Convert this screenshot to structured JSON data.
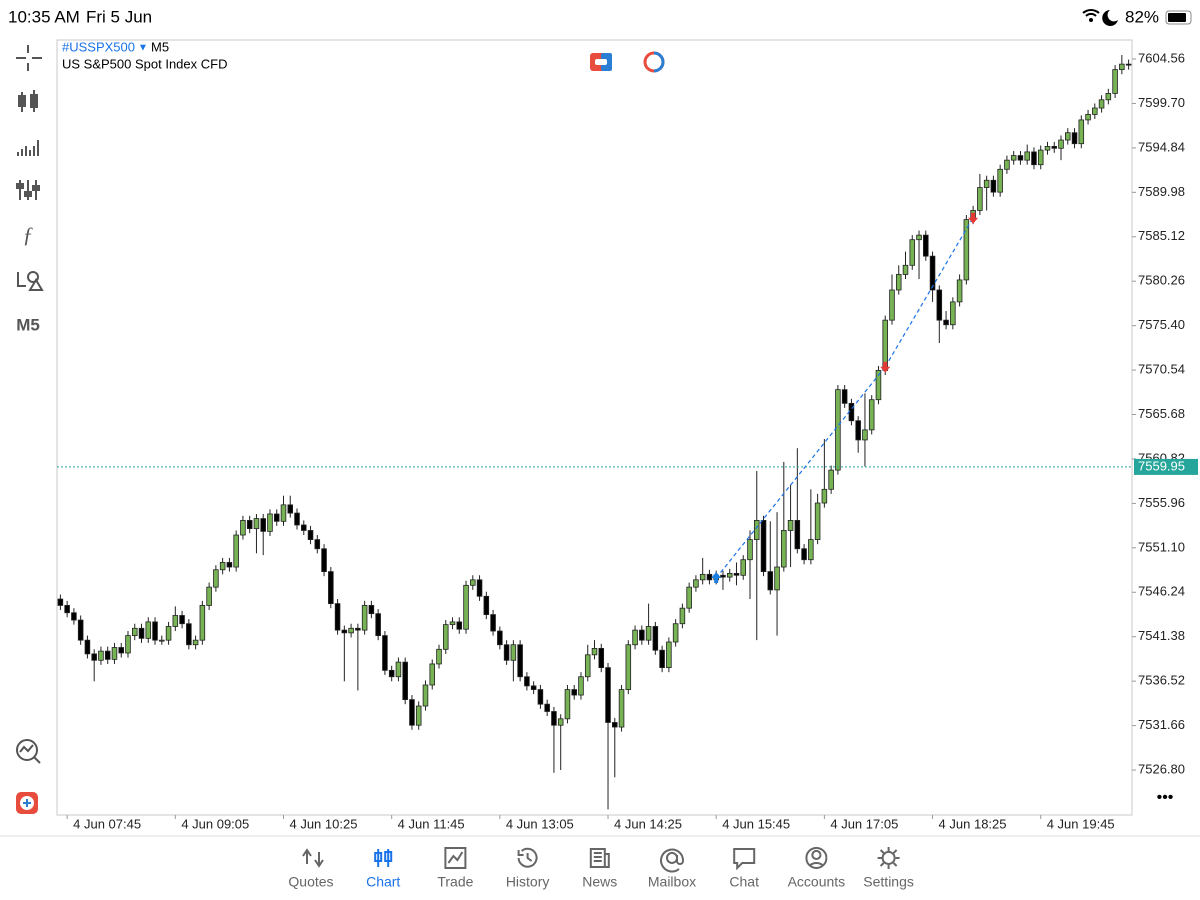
{
  "status_bar": {
    "time": "10:35 AM",
    "date": "Fri 5 Jun",
    "battery": "82%"
  },
  "toolbar": {
    "timeframe": "M5"
  },
  "more": "•••",
  "chart_data": {
    "type": "candlestick",
    "symbol": "#USSPX500",
    "timeframe": "M5",
    "description": "US S&P500 Spot Index CFD",
    "up_color": "#77b255",
    "down_color": "#000000",
    "categories": [
      null,
      "4 Jun 07:45",
      null,
      null,
      null,
      null,
      null,
      null,
      null,
      null,
      null,
      null,
      null,
      null,
      null,
      null,
      null,
      "4 Jun 09:05",
      null,
      null,
      null,
      null,
      null,
      null,
      null,
      null,
      null,
      null,
      null,
      null,
      null,
      null,
      null,
      "4 Jun 10:25",
      null,
      null,
      null,
      null,
      null,
      null,
      null,
      null,
      null,
      null,
      null,
      null,
      null,
      null,
      null,
      "4 Jun 11:45",
      null,
      null,
      null,
      null,
      null,
      null,
      null,
      null,
      null,
      null,
      null,
      null,
      null,
      null,
      null,
      "4 Jun 13:05",
      null,
      null,
      null,
      null,
      null,
      null,
      null,
      null,
      null,
      null,
      null,
      null,
      null,
      null,
      null,
      "4 Jun 14:25",
      null,
      null,
      null,
      null,
      null,
      null,
      null,
      null,
      null,
      null,
      null,
      null,
      null,
      null,
      null,
      "4 Jun 15:45",
      null,
      null,
      null,
      null,
      null,
      null,
      null,
      null,
      null,
      null,
      null,
      null,
      null,
      null,
      null,
      "4 Jun 17:05",
      null,
      null,
      null,
      null,
      null,
      null,
      null,
      null,
      null,
      null,
      null,
      null,
      null,
      null,
      null,
      "4 Jun 18:25",
      null,
      null,
      null,
      null,
      null,
      null,
      null,
      null,
      null,
      null,
      null,
      null,
      null,
      null,
      null,
      "4 Jun 19:45",
      null,
      null,
      null,
      null,
      null,
      null,
      null,
      null,
      null,
      null,
      null,
      null,
      null
    ],
    "open": [
      7545.5,
      7544.8,
      7544.0,
      7543.2,
      7541.0,
      7539.5,
      7538.8,
      7539.8,
      7538.9,
      7540.2,
      7539.6,
      7541.5,
      7542.3,
      7541.2,
      7543.0,
      7541.0,
      7541.0,
      7542.5,
      7543.7,
      7542.8,
      7540.5,
      7541.0,
      7544.8,
      7546.8,
      7548.7,
      7549.5,
      7549.0,
      7552.5,
      7554.1,
      7553.2,
      7554.3,
      7552.9,
      7554.8,
      7554.0,
      7555.8,
      7554.9,
      7553.6,
      7553.0,
      7552.0,
      7551.0,
      7548.5,
      7545.0,
      7542.1,
      7541.8,
      7542.3,
      7542.1,
      7544.8,
      7543.9,
      7541.5,
      7537.7,
      7537.0,
      7538.6,
      7534.5,
      7531.7,
      7533.8,
      7536.1,
      7538.4,
      7540.0,
      7542.7,
      7543.0,
      7542.2,
      7547.0,
      7547.6,
      7545.8,
      7543.8,
      7542.0,
      7540.5,
      7538.8,
      7540.5,
      7537.0,
      7536.0,
      7535.6,
      7534.0,
      7533.2,
      7531.7,
      7532.4,
      7535.6,
      7535.0,
      7537.0,
      7539.4,
      7540.1,
      7538.0,
      7532.0,
      7531.5,
      7535.6,
      7540.5,
      7542.1,
      7541.0,
      7542.5,
      7539.9,
      7538.0,
      7540.8,
      7542.8,
      7544.5,
      7546.8,
      7547.6,
      7548.2,
      7547.6,
      7548.1,
      7547.9,
      7548.3,
      7548.1,
      7549.8,
      7552.0,
      7554.1,
      7548.5,
      7546.5,
      7549.0,
      7553.0,
      7554.1,
      7551.0,
      7549.8,
      7552.0,
      7556.0,
      7557.5,
      7559.6,
      7568.4,
      7566.9,
      7565.0,
      7562.9,
      7564.0,
      7567.3,
      7570.5,
      7576.0,
      7579.3,
      7581.0,
      7582.0,
      7584.8,
      7585.3,
      7583.0,
      7579.3,
      7576.0,
      7575.5,
      7578.0,
      7580.4,
      7587.0,
      7588.0,
      7590.5,
      7591.3,
      7590.0,
      7592.5,
      7593.5,
      7594.0,
      7593.5,
      7594.4,
      7593.0,
      7594.6,
      7595.0,
      7594.8,
      7595.7,
      7596.5,
      7595.3,
      7597.9,
      7598.5,
      7599.2,
      7600.1,
      7600.8,
      7603.4,
      7604.0
    ],
    "high": [
      7546.0,
      7545.3,
      7544.5,
      7543.7,
      7541.5,
      7540.0,
      7540.3,
      7540.3,
      7540.7,
      7540.7,
      7542.0,
      7542.8,
      7542.8,
      7543.5,
      7543.5,
      7541.5,
      7543.0,
      7544.7,
      7544.2,
      7543.3,
      7541.5,
      7545.3,
      7547.3,
      7549.2,
      7550.0,
      7550.0,
      7553.0,
      7554.6,
      7554.6,
      7554.8,
      7554.8,
      7555.3,
      7555.3,
      7556.8,
      7556.8,
      7555.4,
      7554.1,
      7553.5,
      7552.5,
      7551.5,
      7549.0,
      7545.5,
      7542.6,
      7542.8,
      7542.8,
      7545.3,
      7545.3,
      7544.4,
      7542.0,
      7538.2,
      7539.1,
      7539.1,
      7535.0,
      7534.3,
      7536.6,
      7538.9,
      7540.5,
      7543.2,
      7543.5,
      7543.5,
      7547.5,
      7548.1,
      7548.1,
      7546.3,
      7544.3,
      7542.5,
      7541.0,
      7541.0,
      7541.0,
      7537.5,
      7536.5,
      7536.1,
      7534.5,
      7533.7,
      7532.9,
      7536.1,
      7536.1,
      7537.5,
      7540.5,
      7541.0,
      7540.6,
      7538.5,
      7532.5,
      7536.1,
      7541.0,
      7542.6,
      7542.6,
      7545.0,
      7543.0,
      7540.4,
      7541.3,
      7543.3,
      7545.0,
      7547.3,
      7548.1,
      7550.0,
      7548.7,
      7548.6,
      7548.6,
      7548.8,
      7549.5,
      7550.3,
      7553.0,
      7559.5,
      7554.6,
      7554.0,
      7555.0,
      7560.5,
      7558.0,
      7562.0,
      7551.5,
      7557.5,
      7557.0,
      7563.0,
      7560.1,
      7568.9,
      7568.9,
      7567.4,
      7565.5,
      7568.0,
      7567.8,
      7571.0,
      7576.5,
      7581.0,
      7582.0,
      7583.5,
      7585.3,
      7585.8,
      7585.8,
      7583.5,
      7579.8,
      7577.0,
      7578.5,
      7581.0,
      7587.5,
      7588.5,
      7592.0,
      7591.8,
      7591.8,
      7593.0,
      7594.0,
      7594.5,
      7594.5,
      7595.2,
      7594.9,
      7595.1,
      7595.5,
      7595.5,
      7596.2,
      7597.0,
      7597.0,
      7598.4,
      7599.0,
      7599.7,
      7600.6,
      7601.3,
      7603.9,
      7605.0,
      7604.5
    ],
    "low": [
      7544.3,
      7543.5,
      7542.7,
      7540.5,
      7539.0,
      7536.5,
      7538.3,
      7538.4,
      7538.4,
      7539.1,
      7539.1,
      7541.0,
      7540.7,
      7540.7,
      7540.5,
      7540.5,
      7540.5,
      7542.0,
      7542.3,
      7540.0,
      7540.0,
      7540.5,
      7544.3,
      7546.3,
      7548.2,
      7548.5,
      7548.5,
      7552.0,
      7552.7,
      7550.5,
      7550.3,
      7552.4,
      7553.5,
      7553.5,
      7554.4,
      7553.1,
      7552.5,
      7551.5,
      7550.5,
      7548.0,
      7544.5,
      7541.6,
      7536.5,
      7541.3,
      7535.5,
      7541.6,
      7543.4,
      7541.0,
      7537.2,
      7536.5,
      7536.5,
      7534.0,
      7531.2,
      7531.2,
      7533.3,
      7535.6,
      7537.9,
      7539.5,
      7542.2,
      7541.7,
      7541.7,
      7546.5,
      7545.3,
      7543.3,
      7541.5,
      7540.0,
      7538.3,
      7536.5,
      7536.5,
      7535.5,
      7535.1,
      7533.5,
      7532.7,
      7526.5,
      7526.8,
      7531.9,
      7534.5,
      7534.5,
      7536.5,
      7538.9,
      7537.5,
      7522.5,
      7526.0,
      7531.0,
      7535.1,
      7540.0,
      7540.5,
      7540.5,
      7539.4,
      7537.5,
      7537.5,
      7540.3,
      7542.3,
      7544.0,
      7546.3,
      7547.1,
      7547.1,
      7547.1,
      7546.5,
      7547.4,
      7547.0,
      7547.6,
      7545.5,
      7541.0,
      7548.0,
      7546.0,
      7541.5,
      7548.5,
      7549.0,
      7550.5,
      7549.3,
      7549.3,
      7551.5,
      7555.5,
      7557.0,
      7559.1,
      7566.4,
      7564.5,
      7561.5,
      7560.0,
      7563.5,
      7566.8,
      7570.0,
      7575.5,
      7578.8,
      7580.5,
      7581.5,
      7580.5,
      7582.5,
      7578.0,
      7573.5,
      7575.0,
      7575.0,
      7577.5,
      7579.9,
      7586.5,
      7587.5,
      7588.0,
      7589.5,
      7589.5,
      7592.0,
      7593.0,
      7593.0,
      7593.0,
      7592.5,
      7592.5,
      7594.1,
      7594.3,
      7593.5,
      7595.2,
      7594.8,
      7594.8,
      7597.4,
      7598.0,
      7598.7,
      7599.6,
      7600.3,
      7602.9,
      7603.4
    ],
    "close": [
      7544.8,
      7544.0,
      7543.2,
      7541.0,
      7539.5,
      7538.8,
      7539.8,
      7538.9,
      7540.2,
      7539.6,
      7541.5,
      7542.3,
      7541.2,
      7543.0,
      7541.0,
      7541.0,
      7542.5,
      7543.7,
      7542.8,
      7540.5,
      7541.0,
      7544.8,
      7546.8,
      7548.7,
      7549.5,
      7549.0,
      7552.5,
      7554.1,
      7553.2,
      7554.3,
      7552.9,
      7554.8,
      7554.0,
      7555.8,
      7554.9,
      7553.6,
      7553.0,
      7552.0,
      7551.0,
      7548.5,
      7545.0,
      7542.1,
      7541.8,
      7542.3,
      7542.1,
      7544.8,
      7543.9,
      7541.5,
      7537.7,
      7537.0,
      7538.6,
      7534.5,
      7531.7,
      7533.8,
      7536.1,
      7538.4,
      7540.0,
      7542.7,
      7543.0,
      7542.2,
      7547.0,
      7547.6,
      7545.8,
      7543.8,
      7542.0,
      7540.5,
      7538.8,
      7540.5,
      7537.0,
      7536.0,
      7535.6,
      7534.0,
      7533.2,
      7531.7,
      7532.4,
      7535.6,
      7535.0,
      7537.0,
      7539.4,
      7540.1,
      7538.0,
      7532.0,
      7531.5,
      7535.6,
      7540.5,
      7542.1,
      7541.0,
      7542.5,
      7539.9,
      7538.0,
      7540.8,
      7542.8,
      7544.5,
      7546.8,
      7547.6,
      7548.2,
      7547.6,
      7548.1,
      7547.9,
      7548.3,
      7548.1,
      7549.8,
      7552.0,
      7554.1,
      7548.5,
      7546.5,
      7549.0,
      7553.0,
      7554.1,
      7551.0,
      7549.8,
      7552.0,
      7556.0,
      7557.5,
      7559.6,
      7568.4,
      7566.9,
      7565.0,
      7562.9,
      7564.0,
      7567.3,
      7570.5,
      7576.0,
      7579.3,
      7581.0,
      7582.0,
      7584.8,
      7585.3,
      7583.0,
      7579.3,
      7576.0,
      7575.5,
      7578.0,
      7580.4,
      7587.0,
      7588.0,
      7590.5,
      7591.3,
      7590.0,
      7592.5,
      7593.5,
      7594.0,
      7593.5,
      7594.4,
      7593.0,
      7594.6,
      7595.0,
      7594.8,
      7595.7,
      7596.5,
      7595.3,
      7597.9,
      7598.5,
      7599.2,
      7600.1,
      7600.8,
      7603.4,
      7604.0,
      7603.9
    ],
    "ylim": [
      7521.88,
      7606.64
    ],
    "yticks": [
      7604.56,
      {
        "value": 7599.7,
        "label": "7599.70"
      },
      7594.84,
      7589.98,
      7585.12,
      7580.26,
      {
        "value": 7575.4,
        "label": "7575.40"
      },
      7570.54,
      7565.68,
      7560.82,
      7555.96,
      {
        "value": 7551.1,
        "label": "7551.10"
      },
      7546.24,
      7541.38,
      7536.52,
      7531.66,
      {
        "value": 7526.8,
        "label": "7526.80"
      }
    ],
    "price_line": {
      "value": 7559.95,
      "label": "7559.95",
      "color": "#26a69a"
    },
    "trade_line_color": "#1a73e8",
    "markers": [
      {
        "x": 97,
        "price": 7547.8,
        "color": "#1a7fe0",
        "direction": "up"
      },
      {
        "x": 122,
        "price": 7570.9,
        "color": "#e53935",
        "direction": "down"
      },
      {
        "x": 135,
        "price": 7587.2,
        "color": "#e53935",
        "direction": "down"
      }
    ]
  },
  "tabs": [
    {
      "label": "Quotes"
    },
    {
      "label": "Chart"
    },
    {
      "label": "Trade"
    },
    {
      "label": "History"
    },
    {
      "label": "News"
    },
    {
      "label": "Mailbox"
    },
    {
      "label": "Chat"
    },
    {
      "label": "Accounts"
    },
    {
      "label": "Settings"
    }
  ],
  "active_tab": 1
}
